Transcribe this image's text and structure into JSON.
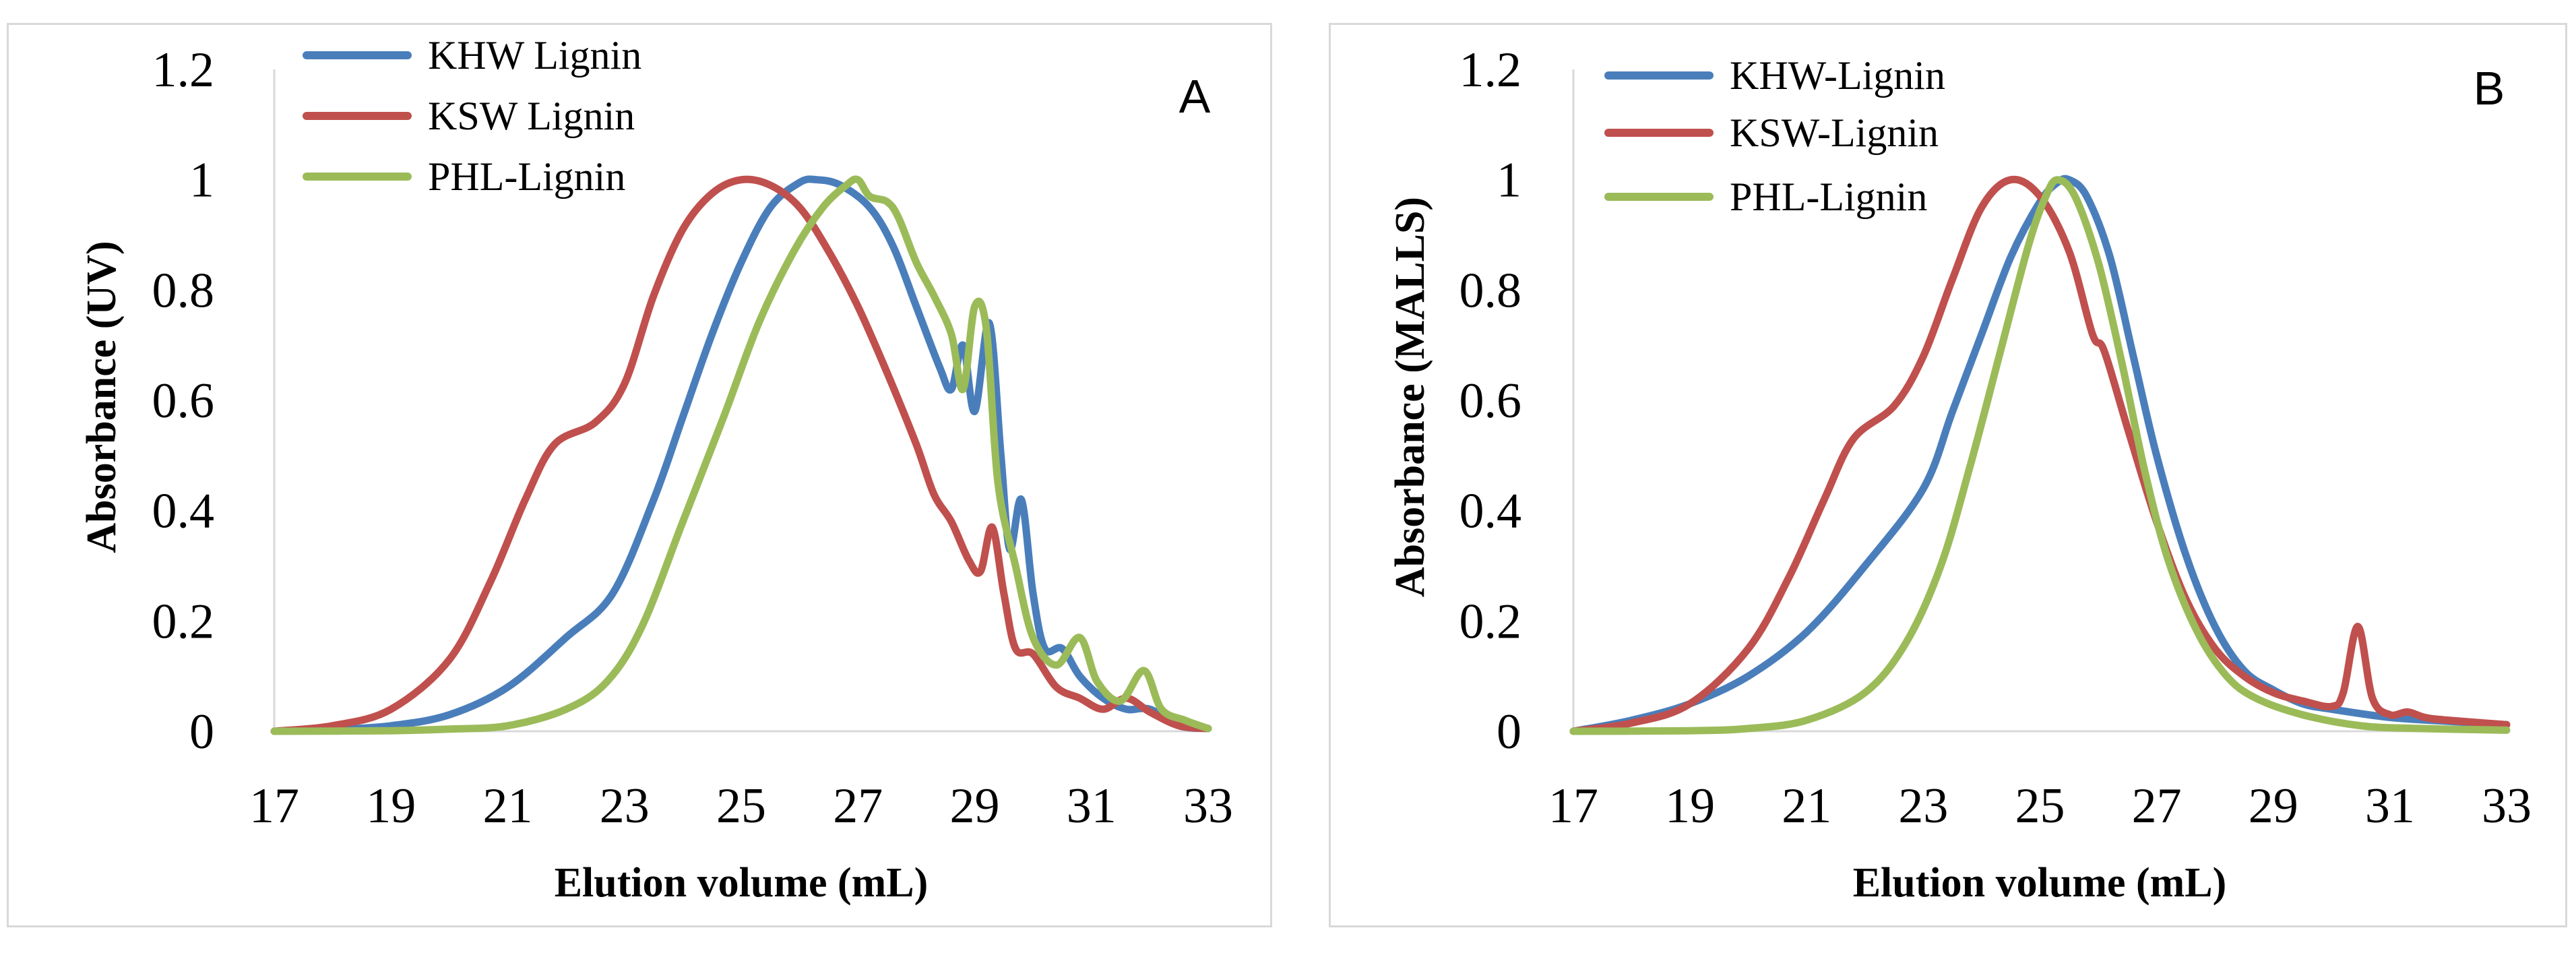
{
  "chart_data": [
    {
      "type": "line",
      "panel_label": "A",
      "title": "",
      "xlabel": "Elution volume (mL)",
      "ylabel": "Absorbance (UV)",
      "xlim": [
        17,
        33
      ],
      "ylim": [
        0,
        1.2
      ],
      "x_ticks": [
        "17",
        "19",
        "21",
        "23",
        "25",
        "27",
        "29",
        "31",
        "33"
      ],
      "y_ticks": [
        "0",
        "0.2",
        "0.4",
        "0.6",
        "0.8",
        "1",
        "1.2"
      ],
      "grid": false,
      "legend_position": "top-left",
      "series": [
        {
          "name": "KHW Lignin",
          "color": "#4a7ebb",
          "points": [
            [
              17,
              0
            ],
            [
              18,
              0.003
            ],
            [
              19,
              0.01
            ],
            [
              20,
              0.03
            ],
            [
              21,
              0.08
            ],
            [
              22,
              0.17
            ],
            [
              22.8,
              0.25
            ],
            [
              23.5,
              0.42
            ],
            [
              24,
              0.57
            ],
            [
              24.5,
              0.72
            ],
            [
              25,
              0.85
            ],
            [
              25.5,
              0.95
            ],
            [
              26,
              0.995
            ],
            [
              26.3,
              1.0
            ],
            [
              26.7,
              0.99
            ],
            [
              27.2,
              0.95
            ],
            [
              27.6,
              0.88
            ],
            [
              28,
              0.77
            ],
            [
              28.4,
              0.66
            ],
            [
              28.6,
              0.62
            ],
            [
              28.8,
              0.7
            ],
            [
              29,
              0.58
            ],
            [
              29.25,
              0.74
            ],
            [
              29.45,
              0.5
            ],
            [
              29.6,
              0.33
            ],
            [
              29.8,
              0.42
            ],
            [
              30,
              0.25
            ],
            [
              30.2,
              0.15
            ],
            [
              30.5,
              0.15
            ],
            [
              30.8,
              0.1
            ],
            [
              31.2,
              0.06
            ],
            [
              31.6,
              0.04
            ],
            [
              32,
              0.04
            ],
            [
              32.5,
              0.01
            ],
            [
              33,
              0.005
            ]
          ]
        },
        {
          "name": "KSW Lignin",
          "color": "#c0504d",
          "points": [
            [
              17,
              0
            ],
            [
              18,
              0.01
            ],
            [
              19,
              0.04
            ],
            [
              20,
              0.13
            ],
            [
              20.7,
              0.27
            ],
            [
              21.3,
              0.42
            ],
            [
              21.8,
              0.52
            ],
            [
              22.5,
              0.56
            ],
            [
              23,
              0.63
            ],
            [
              23.5,
              0.79
            ],
            [
              24,
              0.91
            ],
            [
              24.5,
              0.975
            ],
            [
              25,
              1.0
            ],
            [
              25.5,
              0.99
            ],
            [
              26,
              0.95
            ],
            [
              26.5,
              0.87
            ],
            [
              27,
              0.77
            ],
            [
              27.5,
              0.65
            ],
            [
              28,
              0.52
            ],
            [
              28.3,
              0.43
            ],
            [
              28.6,
              0.38
            ],
            [
              28.9,
              0.31
            ],
            [
              29.1,
              0.29
            ],
            [
              29.3,
              0.37
            ],
            [
              29.5,
              0.25
            ],
            [
              29.7,
              0.15
            ],
            [
              30,
              0.14
            ],
            [
              30.4,
              0.08
            ],
            [
              30.8,
              0.06
            ],
            [
              31.2,
              0.04
            ],
            [
              31.6,
              0.06
            ],
            [
              32,
              0.035
            ],
            [
              32.5,
              0.01
            ],
            [
              33,
              0.005
            ]
          ]
        },
        {
          "name": "PHL-Lignin",
          "color": "#9bbb59",
          "points": [
            [
              17,
              0
            ],
            [
              19,
              0.001
            ],
            [
              20,
              0.004
            ],
            [
              21,
              0.01
            ],
            [
              22,
              0.04
            ],
            [
              22.7,
              0.09
            ],
            [
              23.3,
              0.19
            ],
            [
              24,
              0.38
            ],
            [
              24.7,
              0.57
            ],
            [
              25.3,
              0.74
            ],
            [
              25.9,
              0.87
            ],
            [
              26.4,
              0.95
            ],
            [
              26.8,
              0.99
            ],
            [
              27,
              1.0
            ],
            [
              27.2,
              0.97
            ],
            [
              27.5,
              0.96
            ],
            [
              27.7,
              0.93
            ],
            [
              28,
              0.85
            ],
            [
              28.3,
              0.79
            ],
            [
              28.6,
              0.72
            ],
            [
              28.8,
              0.62
            ],
            [
              29,
              0.77
            ],
            [
              29.2,
              0.73
            ],
            [
              29.4,
              0.45
            ],
            [
              29.7,
              0.3
            ],
            [
              30,
              0.17
            ],
            [
              30.4,
              0.12
            ],
            [
              30.8,
              0.17
            ],
            [
              31.1,
              0.09
            ],
            [
              31.5,
              0.055
            ],
            [
              31.9,
              0.11
            ],
            [
              32.2,
              0.04
            ],
            [
              32.6,
              0.02
            ],
            [
              33,
              0.005
            ]
          ]
        }
      ]
    },
    {
      "type": "line",
      "panel_label": "B",
      "title": "",
      "xlabel": "Elution volume (mL)",
      "ylabel": "Absorbance (MALLS)",
      "xlim": [
        17,
        33
      ],
      "ylim": [
        0,
        1.2
      ],
      "x_ticks": [
        "17",
        "19",
        "21",
        "23",
        "25",
        "27",
        "29",
        "31",
        "33"
      ],
      "y_ticks": [
        "0",
        "0.2",
        "0.4",
        "0.6",
        "0.8",
        "1",
        "1.2"
      ],
      "grid": false,
      "legend_position": "top-left",
      "series": [
        {
          "name": "KHW-Lignin",
          "color": "#4a7ebb",
          "points": [
            [
              17,
              0
            ],
            [
              18,
              0.02
            ],
            [
              19,
              0.05
            ],
            [
              20,
              0.1
            ],
            [
              21,
              0.18
            ],
            [
              22,
              0.3
            ],
            [
              23,
              0.44
            ],
            [
              23.5,
              0.58
            ],
            [
              24,
              0.72
            ],
            [
              24.5,
              0.86
            ],
            [
              25,
              0.96
            ],
            [
              25.3,
              0.995
            ],
            [
              25.5,
              1.0
            ],
            [
              25.8,
              0.97
            ],
            [
              26.2,
              0.86
            ],
            [
              26.6,
              0.68
            ],
            [
              27,
              0.5
            ],
            [
              27.5,
              0.32
            ],
            [
              28,
              0.19
            ],
            [
              28.5,
              0.11
            ],
            [
              29,
              0.075
            ],
            [
              29.5,
              0.05
            ],
            [
              30,
              0.04
            ],
            [
              31,
              0.025
            ],
            [
              32,
              0.018
            ],
            [
              33,
              0.012
            ]
          ]
        },
        {
          "name": "KSW-Lignin",
          "color": "#c0504d",
          "points": [
            [
              17,
              0
            ],
            [
              18,
              0.015
            ],
            [
              19,
              0.05
            ],
            [
              20,
              0.15
            ],
            [
              20.7,
              0.28
            ],
            [
              21.3,
              0.42
            ],
            [
              21.8,
              0.53
            ],
            [
              22.5,
              0.59
            ],
            [
              23,
              0.68
            ],
            [
              23.5,
              0.82
            ],
            [
              24,
              0.95
            ],
            [
              24.5,
              1.0
            ],
            [
              25,
              0.97
            ],
            [
              25.5,
              0.87
            ],
            [
              25.9,
              0.72
            ],
            [
              26.1,
              0.69
            ],
            [
              26.5,
              0.55
            ],
            [
              27,
              0.38
            ],
            [
              27.5,
              0.24
            ],
            [
              28,
              0.15
            ],
            [
              28.5,
              0.1
            ],
            [
              29,
              0.07
            ],
            [
              29.5,
              0.055
            ],
            [
              30,
              0.045
            ],
            [
              30.2,
              0.07
            ],
            [
              30.45,
              0.19
            ],
            [
              30.7,
              0.06
            ],
            [
              31,
              0.03
            ],
            [
              31.3,
              0.035
            ],
            [
              31.6,
              0.025
            ],
            [
              32,
              0.02
            ],
            [
              33,
              0.012
            ]
          ]
        },
        {
          "name": "PHL-Lignin",
          "color": "#9bbb59",
          "points": [
            [
              17,
              0
            ],
            [
              19,
              0.001
            ],
            [
              20,
              0.005
            ],
            [
              21,
              0.02
            ],
            [
              22,
              0.07
            ],
            [
              22.7,
              0.16
            ],
            [
              23.3,
              0.3
            ],
            [
              23.8,
              0.48
            ],
            [
              24.3,
              0.68
            ],
            [
              24.8,
              0.88
            ],
            [
              25.1,
              0.97
            ],
            [
              25.3,
              1.0
            ],
            [
              25.6,
              0.97
            ],
            [
              26,
              0.85
            ],
            [
              26.4,
              0.67
            ],
            [
              26.8,
              0.47
            ],
            [
              27.2,
              0.31
            ],
            [
              27.7,
              0.18
            ],
            [
              28.2,
              0.1
            ],
            [
              28.7,
              0.06
            ],
            [
              29.5,
              0.03
            ],
            [
              30.5,
              0.01
            ],
            [
              31.5,
              0.005
            ],
            [
              33,
              0.002
            ]
          ]
        }
      ]
    }
  ]
}
